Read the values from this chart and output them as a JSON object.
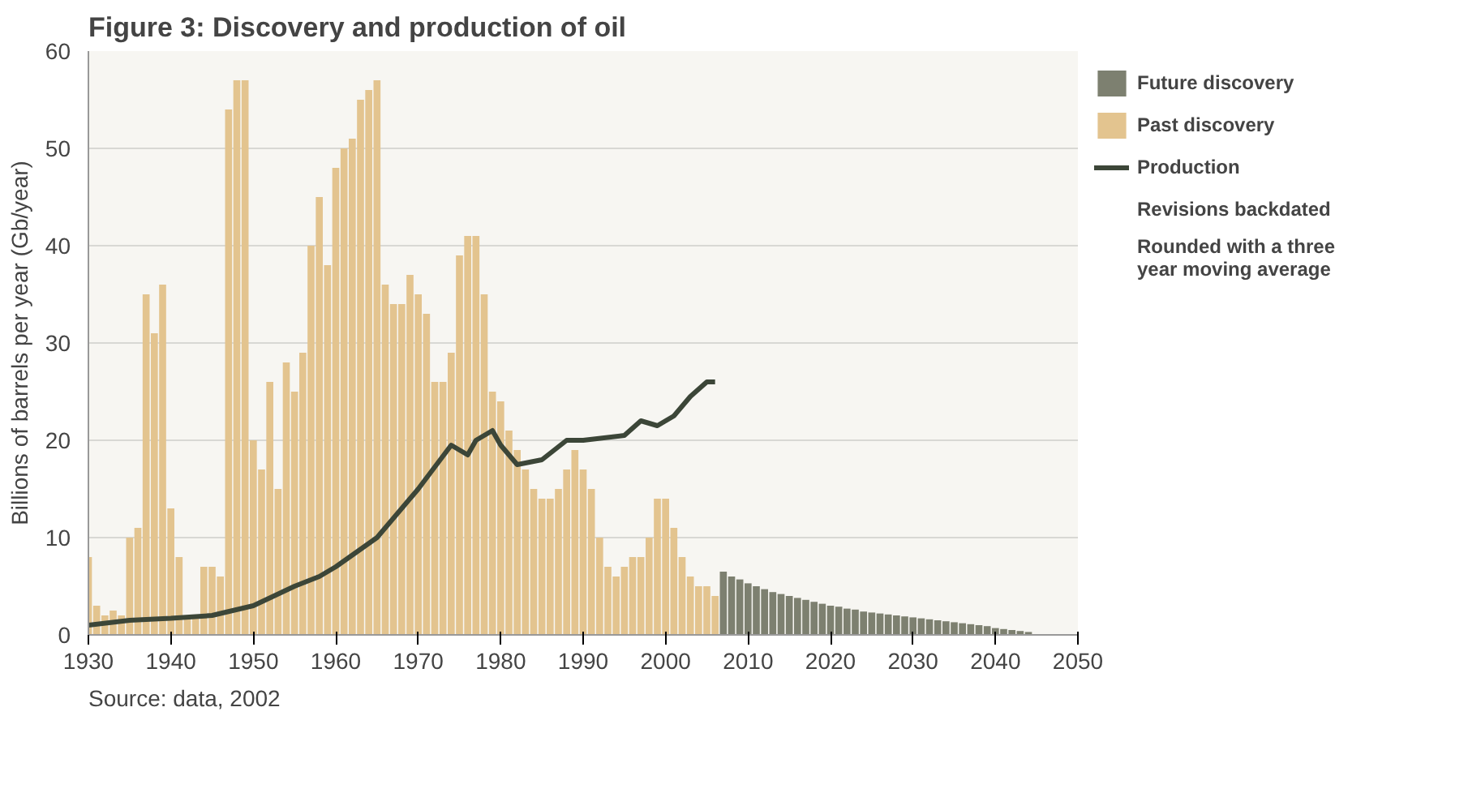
{
  "chart_data": {
    "type": "bar",
    "title": "Figure 3: Discovery and production of oil",
    "ylabel": "Billions of barrels per year (Gb/year)",
    "xlim": [
      1930,
      2050
    ],
    "xticks": [
      1930,
      1940,
      1950,
      1960,
      1970,
      1980,
      1990,
      2000,
      2010,
      2020,
      2030,
      2040,
      2050
    ],
    "ylim": [
      0,
      60
    ],
    "yticks": [
      0,
      10,
      20,
      30,
      40,
      50,
      60
    ],
    "grid": "y",
    "legend": "right",
    "annotations": [
      "Revisions backdated",
      "Rounded with a three year moving average",
      "Source: data, 2002"
    ],
    "series": [
      {
        "name": "Future discovery",
        "color": "#7d8070",
        "x": [
          2007,
          2008,
          2009,
          2010,
          2011,
          2012,
          2013,
          2014,
          2015,
          2016,
          2017,
          2018,
          2019,
          2020,
          2021,
          2022,
          2023,
          2024,
          2025,
          2026,
          2027,
          2028,
          2029,
          2030,
          2031,
          2032,
          2033,
          2034,
          2035,
          2036,
          2037,
          2038,
          2039,
          2040,
          2041,
          2042,
          2043,
          2044
        ],
        "values": [
          6.5,
          6,
          5.7,
          5.3,
          5,
          4.7,
          4.4,
          4.2,
          4,
          3.8,
          3.6,
          3.4,
          3.2,
          3,
          2.9,
          2.7,
          2.6,
          2.4,
          2.3,
          2.2,
          2.1,
          2,
          1.9,
          1.8,
          1.7,
          1.6,
          1.5,
          1.4,
          1.3,
          1.2,
          1.1,
          1,
          0.9,
          0.7,
          0.6,
          0.5,
          0.4,
          0.3
        ]
      },
      {
        "name": "Past discovery",
        "color": "#e3c48f",
        "x": [
          1930,
          1931,
          1932,
          1933,
          1934,
          1935,
          1936,
          1937,
          1938,
          1939,
          1940,
          1941,
          1942,
          1943,
          1944,
          1945,
          1946,
          1947,
          1948,
          1949,
          1950,
          1951,
          1952,
          1953,
          1954,
          1955,
          1956,
          1957,
          1958,
          1959,
          1960,
          1961,
          1962,
          1963,
          1964,
          1965,
          1966,
          1967,
          1968,
          1969,
          1970,
          1971,
          1972,
          1973,
          1974,
          1975,
          1976,
          1977,
          1978,
          1979,
          1980,
          1981,
          1982,
          1983,
          1984,
          1985,
          1986,
          1987,
          1988,
          1989,
          1990,
          1991,
          1992,
          1993,
          1994,
          1995,
          1996,
          1997,
          1998,
          1999,
          2000,
          2001,
          2002,
          2003,
          2004,
          2005,
          2006
        ],
        "values": [
          8,
          3,
          2,
          2.5,
          2,
          10,
          11,
          35,
          31,
          36,
          13,
          8,
          2,
          2,
          7,
          7,
          6,
          54,
          57,
          57,
          20,
          17,
          26,
          15,
          28,
          25,
          29,
          40,
          45,
          38,
          48,
          50,
          51,
          55,
          56,
          57,
          36,
          34,
          34,
          37,
          35,
          33,
          26,
          26,
          29,
          39,
          41,
          41,
          35,
          25,
          24,
          21,
          19,
          17,
          15,
          14,
          14,
          15,
          17,
          19,
          17,
          15,
          10,
          7,
          6,
          7,
          8,
          8,
          10,
          14,
          14,
          11,
          8,
          6,
          5,
          5,
          4
        ]
      },
      {
        "name": "Production",
        "type": "line",
        "color": "#3c4638",
        "x": [
          1930,
          1935,
          1940,
          1945,
          1950,
          1955,
          1958,
          1960,
          1965,
          1970,
          1974,
          1975,
          1976,
          1977,
          1979,
          1980,
          1982,
          1985,
          1988,
          1990,
          1995,
          1997,
          1999,
          2001,
          2003,
          2005,
          2006
        ],
        "values": [
          1,
          1.5,
          1.7,
          2,
          3,
          5,
          6,
          7,
          10,
          15,
          19.5,
          19,
          18.5,
          20,
          21,
          19.5,
          17.5,
          18,
          20,
          20,
          20.5,
          22,
          21.5,
          22.5,
          24.5,
          26,
          26
        ]
      }
    ]
  }
}
